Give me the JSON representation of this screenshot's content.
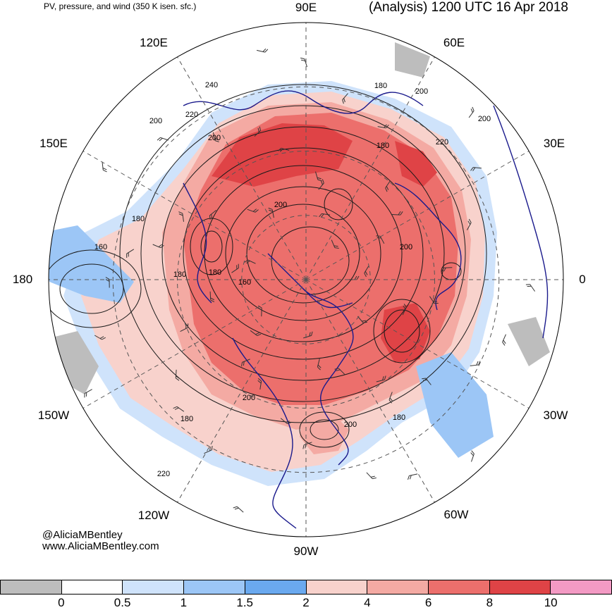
{
  "header": {
    "left_title": "PV, pressure, and wind (350 K isen. sfc.)",
    "right_title": "(Analysis) 1200 UTC 16 Apr 2018"
  },
  "credits": {
    "line1": "@AliciaMBentley",
    "line2": "www.AliciaMBentley.com"
  },
  "longitude_labels": [
    "90E",
    "60E",
    "30E",
    "0",
    "30W",
    "60W",
    "90W",
    "120W",
    "150W",
    "180",
    "150E",
    "120E"
  ],
  "pressure_contour_labels": [
    "240",
    "220",
    "200",
    "200",
    "180",
    "200",
    "200",
    "220",
    "180",
    "200",
    "180",
    "160",
    "180",
    "200",
    "180",
    "160",
    "180",
    "200",
    "180",
    "220",
    "200"
  ],
  "colorbar": {
    "colors": [
      "#bdbdbd",
      "#ffffff",
      "#cfe3fb",
      "#9cc6f6",
      "#6aa9ef",
      "#f8d2cc",
      "#f4aaa3",
      "#ec6f6c",
      "#df4346",
      "#f39ac4"
    ],
    "tick_labels": [
      "0",
      "0.5",
      "1",
      "1.5",
      "2",
      "4",
      "6",
      "8",
      "10"
    ]
  },
  "colors": {
    "coastline": "#1a1a8c",
    "contour": "#1a1a1a",
    "graticule": "#555555"
  }
}
